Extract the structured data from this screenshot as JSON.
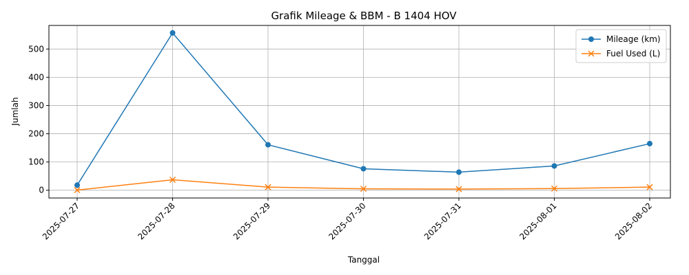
{
  "chart_data": {
    "type": "line",
    "title": "Grafik Mileage & BBM - B 1404 HOV",
    "xlabel": "Tanggal",
    "ylabel": "Jumlah",
    "x": [
      "2025-07-27",
      "2025-07-28",
      "2025-07-29",
      "2025-07-30",
      "2025-07-31",
      "2025-08-01",
      "2025-08-02"
    ],
    "y_ticks": [
      0,
      100,
      200,
      300,
      400,
      500
    ],
    "ylim": [
      -27.5,
      583.5
    ],
    "grid": true,
    "legend_position": "top-right",
    "series": [
      {
        "name": "Mileage (km)",
        "marker": "circle",
        "color": "#1f77b4",
        "values": [
          18,
          557,
          161,
          76,
          64,
          86,
          165
        ]
      },
      {
        "name": "Fuel Used (L)",
        "marker": "x",
        "color": "#ff7f0e",
        "values": [
          0.5,
          37,
          11,
          5,
          4,
          6,
          11
        ]
      }
    ]
  }
}
